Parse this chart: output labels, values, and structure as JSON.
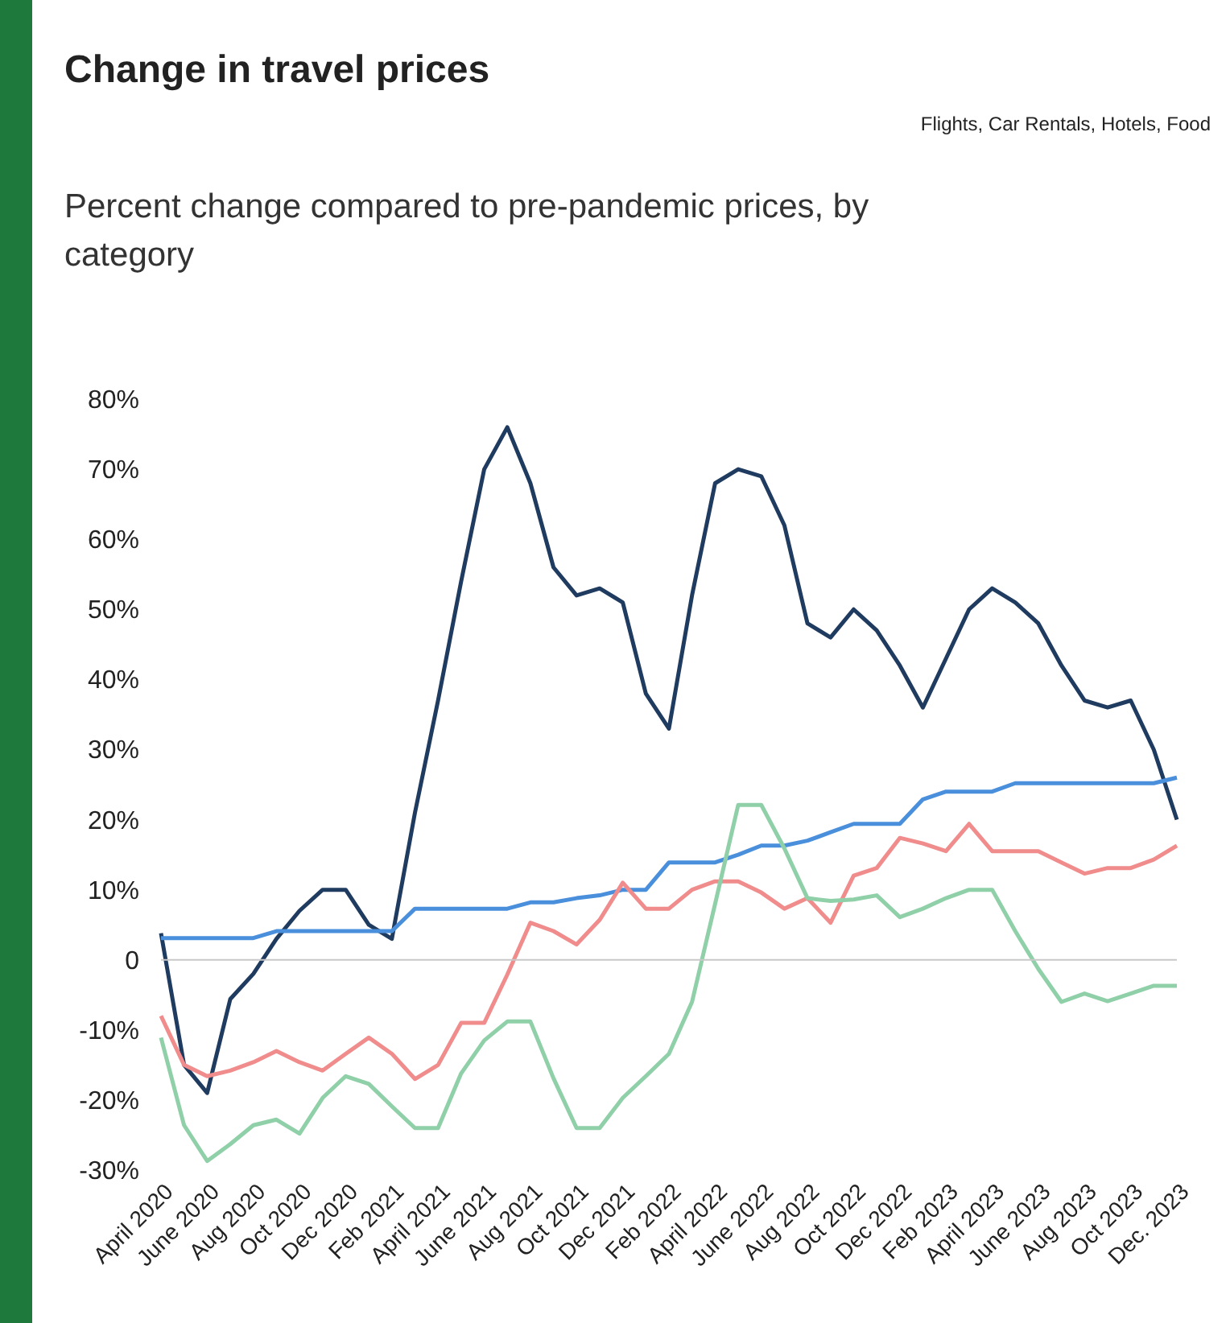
{
  "chart_data": {
    "type": "line",
    "title": "Change in travel prices",
    "subtitle": "Percent change compared to pre-pandemic prices, by category",
    "annotations": [
      "Flights, Car Rentals, Hotels, Food"
    ],
    "categories": [
      "April 2020",
      null,
      "June 2020",
      null,
      "Aug 2020",
      null,
      "Oct 2020",
      null,
      "Dec 2020",
      null,
      "Feb 2021",
      null,
      "April 2021",
      null,
      "June 2021",
      null,
      "Aug 2021",
      null,
      "Oct 2021",
      null,
      "Dec 2021",
      null,
      "Feb 2022",
      null,
      "April 2022",
      null,
      "June 2022",
      null,
      "Aug 2022",
      null,
      "Oct 2022",
      null,
      "Dec 2022",
      null,
      "Feb 2023",
      null,
      "April 2023",
      null,
      "June 2023",
      null,
      "Aug 2023",
      null,
      "Oct 2023",
      null,
      "Dec. 2023"
    ],
    "series": [
      {
        "color": "#1f3b5f",
        "values": [
          3.8,
          -15,
          -19,
          -5.6,
          -2,
          3,
          7,
          10,
          10,
          5,
          3,
          21,
          37,
          54,
          70,
          76,
          68,
          56,
          52,
          53,
          51,
          38,
          33,
          52,
          68,
          70,
          69,
          62,
          48,
          46,
          50,
          47,
          42,
          36,
          43,
          50,
          53,
          51,
          48,
          42,
          37,
          36,
          37,
          30,
          20
        ]
      },
      {
        "color": "#4a8fdc",
        "values": [
          3.1,
          3.1,
          3.1,
          3.1,
          3.1,
          4.1,
          4.1,
          4.1,
          4.1,
          4.1,
          4.1,
          7.3,
          7.3,
          7.3,
          7.3,
          7.3,
          8.2,
          8.2,
          8.8,
          9.2,
          10,
          10,
          13.9,
          13.9,
          13.9,
          15,
          16.3,
          16.3,
          17,
          18.2,
          19.4,
          19.4,
          19.4,
          22.9,
          24,
          24,
          24,
          25.2,
          25.2,
          25.2,
          25.2,
          25.2,
          25.2,
          25.2,
          26
        ]
      },
      {
        "color": "#f08c8c",
        "values": [
          -8,
          -15,
          -16.6,
          -15.8,
          -14.6,
          -13,
          -14.6,
          -15.8,
          -13.4,
          -11.1,
          -13.4,
          -17,
          -15,
          -9,
          -9,
          -2.1,
          5.3,
          4.1,
          2.2,
          5.7,
          11,
          7.3,
          7.3,
          10,
          11.2,
          11.2,
          9.6,
          7.3,
          8.8,
          5.3,
          12,
          13.1,
          17.4,
          16.6,
          15.5,
          19.4,
          15.5,
          15.5,
          15.5,
          13.9,
          12.3,
          13.1,
          13.1,
          14.3,
          16.3
        ]
      },
      {
        "color": "#8fd0a8",
        "values": [
          -11.1,
          -23.6,
          -28.7,
          -26.3,
          -23.6,
          -22.8,
          -24.8,
          -19.7,
          -16.6,
          -17.7,
          -20.9,
          -24,
          -24,
          -16.2,
          -11.5,
          -8.8,
          -8.8,
          -16.9,
          -24,
          -24,
          -19.7,
          -16.6,
          -13.4,
          -6,
          8,
          22.1,
          22.1,
          15.9,
          8.8,
          8.4,
          8.6,
          9.2,
          6.1,
          7.3,
          8.8,
          10,
          10,
          4.1,
          -1.3,
          -6,
          -4.8,
          -5.9,
          -4.8,
          -3.7,
          -3.7
        ]
      }
    ],
    "ylim": [
      -30,
      80
    ],
    "yticks": [
      {
        "value": -30,
        "label": "-30%"
      },
      {
        "value": -20,
        "label": "-20%"
      },
      {
        "value": -10,
        "label": "-10%"
      },
      {
        "value": 0,
        "label": "0"
      },
      {
        "value": 10,
        "label": "10%"
      },
      {
        "value": 20,
        "label": "20%"
      },
      {
        "value": 30,
        "label": "30%"
      },
      {
        "value": 40,
        "label": "40%"
      },
      {
        "value": 50,
        "label": "50%"
      },
      {
        "value": 60,
        "label": "60%"
      },
      {
        "value": 70,
        "label": "70%"
      },
      {
        "value": 80,
        "label": "80%"
      }
    ],
    "ref_lines": [
      {
        "axis": "y",
        "value": 0,
        "color": "#c8c8c8"
      }
    ]
  }
}
